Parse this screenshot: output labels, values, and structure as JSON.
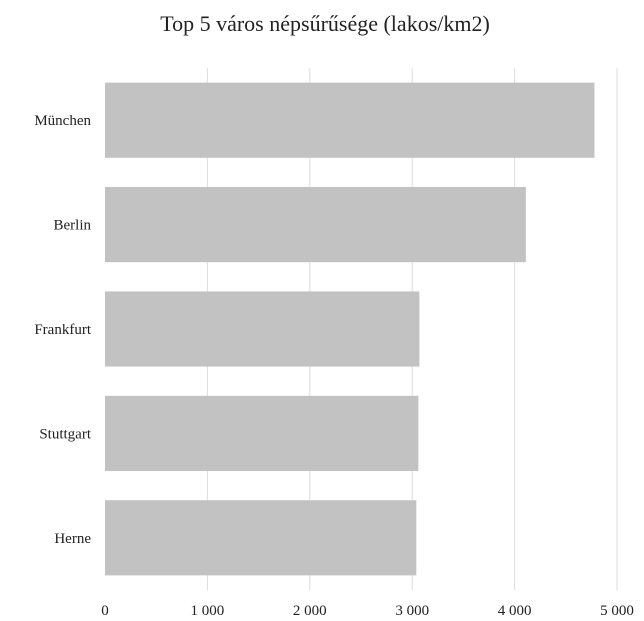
{
  "chart_data": {
    "type": "bar",
    "orientation": "horizontal",
    "title": "Top 5 város népsűrűsége (lakos/km2)",
    "xlabel": "",
    "ylabel": "",
    "categories": [
      "München",
      "Berlin",
      "Frankfurt",
      "Stuttgart",
      "Herne"
    ],
    "values": [
      4780,
      4110,
      3070,
      3060,
      3040
    ],
    "xlim": [
      0,
      5000
    ],
    "ticks": [
      0,
      1000,
      2000,
      3000,
      4000,
      5000
    ],
    "tick_labels": [
      "0",
      "1 000",
      "2 000",
      "3 000",
      "4 000",
      "5 000"
    ],
    "grid": "vertical",
    "legend": "none",
    "bar_color": "#c2c2c2"
  }
}
